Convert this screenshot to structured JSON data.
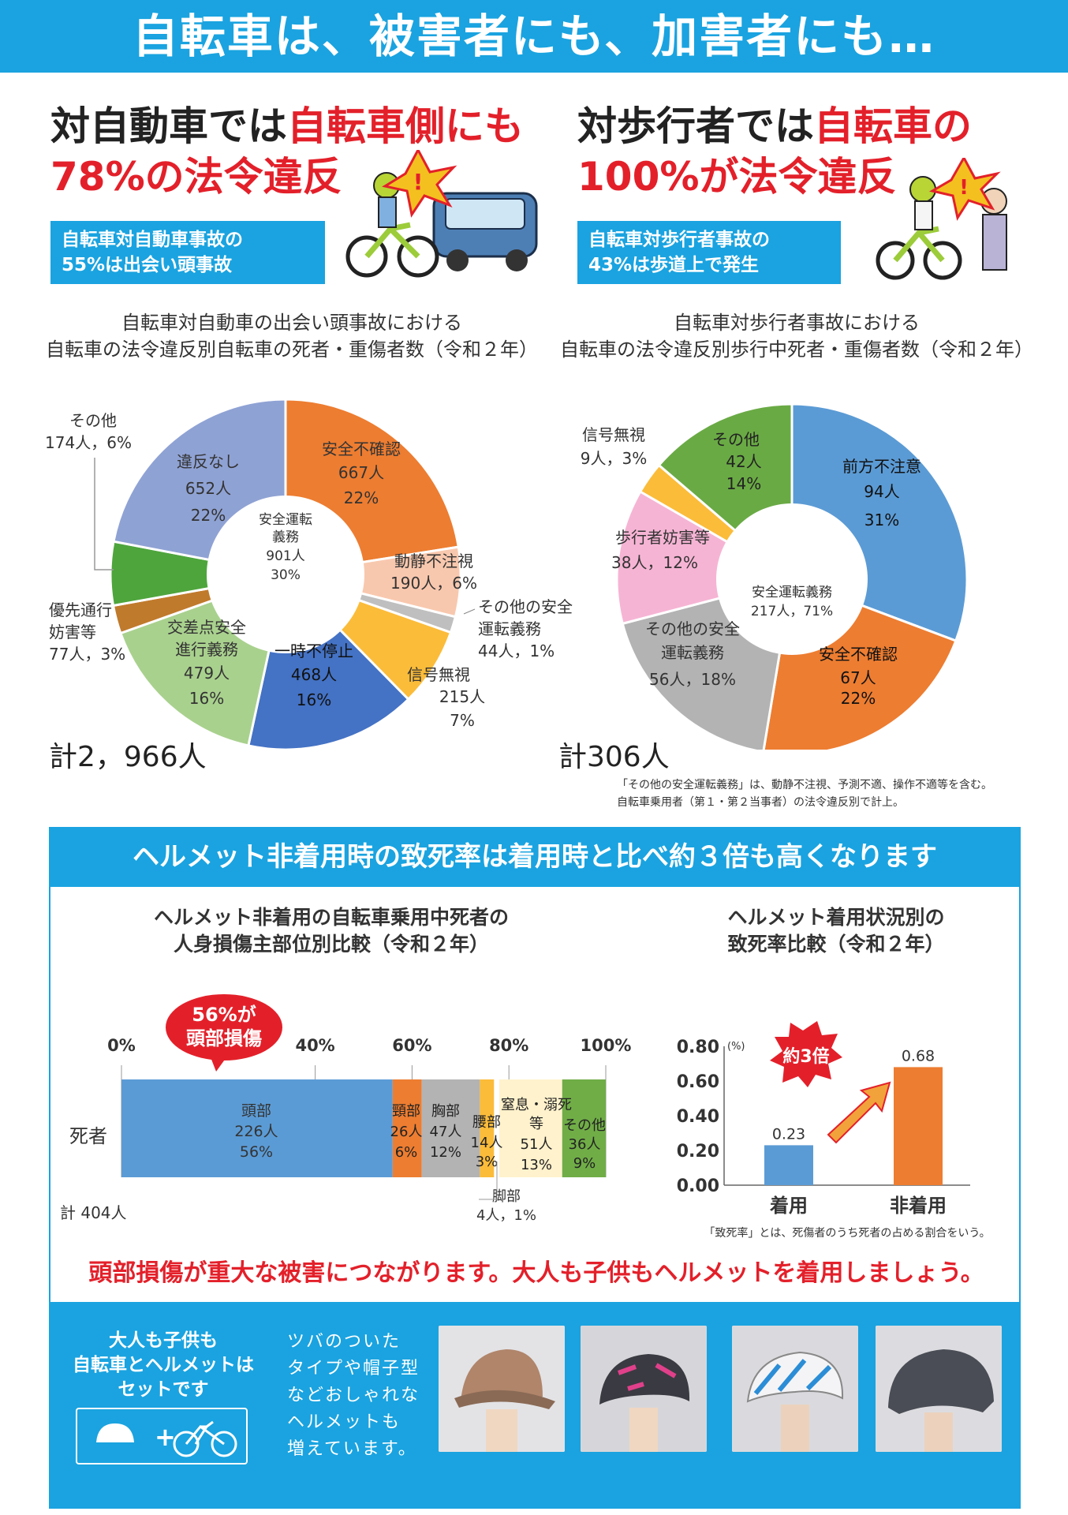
{
  "title": "自転車は、被害者にも、加害者にも…",
  "left": {
    "headline_line1_black": "対自動車では",
    "headline_line1_red": "自転車側にも",
    "headline_line2_red": "78%の法令違反",
    "box_line1": "自転車対自動車事故の",
    "box_line2": "55%は出会い頭事故",
    "caption_line1": "自転車対自動車の出会い頭事故における",
    "caption_line2": "自転車の法令違反別自転車の死者・重傷者数（令和２年）",
    "total": "計2，966人"
  },
  "right": {
    "headline_line1_black": "対歩行者では",
    "headline_line1_red": "自転車の",
    "headline_line2_red": "100%が法令違反",
    "box_line1": "自転車対歩行者事故の",
    "box_line2": "43%は歩道上で発生",
    "caption_line1": "自転車対歩行者事故における",
    "caption_line2": "自転車の法令違反別歩行中死者・重傷者数（令和２年）",
    "total": "計306人",
    "note_line1": "「その他の安全運転義務」は、動静不注視、予測不適、操作不適等を含む。",
    "note_line2": "自転車乗用者（第１・第２当事者）の法令違反別で計上。"
  },
  "helmet": {
    "band": "ヘルメット非着用時の致死率は着用時と比べ約３倍も高くなります",
    "bar_title_line1": "ヘルメット非着用の自転車乗用中死者の",
    "bar_title_line2": "人身損傷主部位別比較（令和２年）",
    "callout_line1": "56%が",
    "callout_line2": "頭部損傷",
    "row_label": "死者",
    "total": "計 404人",
    "fatal_title_line1": "ヘルメット着用状況別の",
    "fatal_title_line2": "致死率比較（令和２年）",
    "fatal_callout": "約3倍",
    "fatal_unit": "(%)",
    "fatal_note": "「致死率」とは、死傷者のうち死者の占める割合をいう。",
    "warning": "頭部損傷が重大な被害につながります。大人も子供もヘルメットを着用しましょう。"
  },
  "bottom": {
    "set_line1": "大人も子供も",
    "set_line2": "自転車とヘルメットは",
    "set_line3": "セットです",
    "plus": "+",
    "desc_line1": "ツバのついた",
    "desc_line2": "タイプや帽子型",
    "desc_line3": "などおしゃれな",
    "desc_line4": "ヘルメットも",
    "desc_line5": "増えています。"
  },
  "colors": {
    "brand_blue": "#1aa3e0",
    "red": "#e3202a",
    "orange": "#ed7d31",
    "blue": "#4472c4",
    "light_blue": "#5b9bd5",
    "green": "#70ad47"
  },
  "chart_data": [
    {
      "type": "pie",
      "name": "left-donut",
      "center_label": [
        "安全運転",
        "義務",
        "901人",
        "30%"
      ],
      "slices": [
        {
          "label": "安全不確認",
          "count": "667人",
          "pct": "22%",
          "value": 667,
          "color": "#ed7d31"
        },
        {
          "label": "動静不注視",
          "count": "190人，6%",
          "pct": "",
          "value": 190,
          "color": "#f8c8ae"
        },
        {
          "label": "その他の安全運転義務",
          "count": "44人，1%",
          "pct": "",
          "value": 44,
          "color": "#bfbfbf"
        },
        {
          "label": "信号無視",
          "count": "215人",
          "pct": "7%",
          "value": 215,
          "color": "#fbbc3a"
        },
        {
          "label": "一時不停止",
          "count": "468人",
          "pct": "16%",
          "value": 468,
          "color": "#4472c4"
        },
        {
          "label": "交差点安全進行義務",
          "count": "479人",
          "pct": "16%",
          "value": 479,
          "color": "#a9d18e"
        },
        {
          "label": "優先通行妨害等",
          "count": "77人，3%",
          "pct": "",
          "value": 77,
          "color": "#c07a2c"
        },
        {
          "label": "その他",
          "count": "174人，6%",
          "pct": "",
          "value": 174,
          "color": "#4ea53c"
        },
        {
          "label": "違反なし",
          "count": "652人",
          "pct": "22%",
          "value": 652,
          "color": "#8fa2d4"
        }
      ]
    },
    {
      "type": "pie",
      "name": "right-donut",
      "center_label": [
        "安全運転義務",
        "217人，71%"
      ],
      "slices": [
        {
          "label": "前方不注意",
          "count": "94人",
          "pct": "31%",
          "value": 94,
          "color": "#5b9bd5"
        },
        {
          "label": "安全不確認",
          "count": "67人",
          "pct": "22%",
          "value": 67,
          "color": "#ed7d31"
        },
        {
          "label": "その他の安全運転義務",
          "count": "56人，18%",
          "pct": "",
          "value": 56,
          "color": "#b3b3b3"
        },
        {
          "label": "歩行者妨害等",
          "count": "38人，12%",
          "pct": "",
          "value": 38,
          "color": "#f6b4d4"
        },
        {
          "label": "信号無視",
          "count": "9人，3%",
          "pct": "",
          "value": 9,
          "color": "#fbbc3a"
        },
        {
          "label": "その他",
          "count": "42人",
          "pct": "14%",
          "value": 42,
          "color": "#6aaa45"
        }
      ]
    },
    {
      "type": "bar",
      "name": "injury-site-stacked-bar",
      "orientation": "horizontal-stacked",
      "category": "死者",
      "xlim": [
        0,
        100
      ],
      "ticks": [
        "0%",
        "40%",
        "60%",
        "80%",
        "100%"
      ],
      "segments": [
        {
          "label": "頭部",
          "count": "226人",
          "pct": "56%",
          "value": 56,
          "color": "#5b9bd5"
        },
        {
          "label": "頸部",
          "count": "26人",
          "pct": "6%",
          "value": 6,
          "color": "#ed7d31"
        },
        {
          "label": "胸部",
          "count": "47人",
          "pct": "12%",
          "value": 12,
          "color": "#b3b3b3"
        },
        {
          "label": "腰部",
          "count": "14人",
          "pct": "3%",
          "value": 3,
          "color": "#fbbc3a"
        },
        {
          "label": "脚部",
          "count": "4人，1%",
          "pct": "",
          "value": 1,
          "color": "#ffffff"
        },
        {
          "label": "窒息・溺死等",
          "count": "51人",
          "pct": "13%",
          "value": 13,
          "color": "#fff2cc"
        },
        {
          "label": "その他",
          "count": "36人",
          "pct": "9%",
          "value": 9,
          "color": "#70ad47"
        }
      ]
    },
    {
      "type": "bar",
      "name": "fatality-rate-bar",
      "categories": [
        "着用",
        "非着用"
      ],
      "values": [
        0.23,
        0.68
      ],
      "value_labels": [
        "0.23",
        "0.68"
      ],
      "colors": [
        "#5b9bd5",
        "#ed7d31"
      ],
      "ylim": [
        0,
        0.8
      ],
      "yticks": [
        "0.00",
        "0.20",
        "0.40",
        "0.60",
        "0.80"
      ]
    }
  ]
}
